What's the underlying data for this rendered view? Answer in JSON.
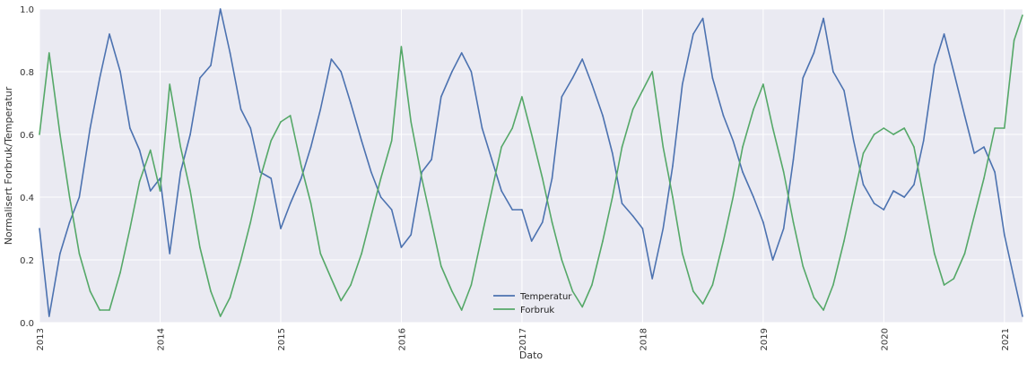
{
  "chart_data": {
    "type": "line",
    "title": "",
    "xlabel": "Dato",
    "ylabel": "Normalisert Forbruk/Temperatur",
    "xlim": [
      2013.0,
      2021.15
    ],
    "ylim": [
      0.0,
      1.0
    ],
    "x_ticks": [
      2013,
      2014,
      2015,
      2016,
      2017,
      2018,
      2019,
      2020,
      2021
    ],
    "y_ticks": [
      0.0,
      0.2,
      0.4,
      0.6,
      0.8,
      1.0
    ],
    "x_tick_labels": [
      "2013",
      "2014",
      "2015",
      "2016",
      "2017",
      "2018",
      "2019",
      "2020",
      "2021"
    ],
    "y_tick_labels": [
      "0.0",
      "0.2",
      "0.4",
      "0.6",
      "0.8",
      "1.0"
    ],
    "grid": true,
    "legend_position": "lower-center",
    "background_color": "#eaeaf2",
    "x": [
      2013.0,
      2013.08,
      2013.17,
      2013.25,
      2013.33,
      2013.42,
      2013.5,
      2013.58,
      2013.67,
      2013.75,
      2013.83,
      2013.92,
      2014.0,
      2014.08,
      2014.17,
      2014.25,
      2014.33,
      2014.42,
      2014.5,
      2014.58,
      2014.67,
      2014.75,
      2014.83,
      2014.92,
      2015.0,
      2015.08,
      2015.17,
      2015.25,
      2015.33,
      2015.42,
      2015.5,
      2015.58,
      2015.67,
      2015.75,
      2015.83,
      2015.92,
      2016.0,
      2016.08,
      2016.17,
      2016.25,
      2016.33,
      2016.42,
      2016.5,
      2016.58,
      2016.67,
      2016.75,
      2016.83,
      2016.92,
      2017.0,
      2017.08,
      2017.17,
      2017.25,
      2017.33,
      2017.42,
      2017.5,
      2017.58,
      2017.67,
      2017.75,
      2017.83,
      2017.92,
      2018.0,
      2018.08,
      2018.17,
      2018.25,
      2018.33,
      2018.42,
      2018.5,
      2018.58,
      2018.67,
      2018.75,
      2018.83,
      2018.92,
      2019.0,
      2019.08,
      2019.17,
      2019.25,
      2019.33,
      2019.42,
      2019.5,
      2019.58,
      2019.67,
      2019.75,
      2019.83,
      2019.92,
      2020.0,
      2020.08,
      2020.17,
      2020.25,
      2020.33,
      2020.42,
      2020.5,
      2020.58,
      2020.67,
      2020.75,
      2020.83,
      2020.92,
      2021.0,
      2021.08,
      2021.15
    ],
    "series": [
      {
        "name": "Temperatur",
        "color": "#4c72b0",
        "values": [
          0.3,
          0.02,
          0.22,
          0.32,
          0.4,
          0.62,
          0.78,
          0.92,
          0.8,
          0.62,
          0.55,
          0.42,
          0.46,
          0.22,
          0.48,
          0.6,
          0.78,
          0.82,
          1.0,
          0.86,
          0.68,
          0.62,
          0.48,
          0.46,
          0.3,
          0.38,
          0.46,
          0.56,
          0.68,
          0.84,
          0.8,
          0.7,
          0.58,
          0.48,
          0.4,
          0.36,
          0.24,
          0.28,
          0.48,
          0.52,
          0.72,
          0.8,
          0.86,
          0.8,
          0.62,
          0.52,
          0.42,
          0.36,
          0.36,
          0.26,
          0.32,
          0.46,
          0.72,
          0.78,
          0.84,
          0.76,
          0.66,
          0.54,
          0.38,
          0.34,
          0.3,
          0.14,
          0.3,
          0.5,
          0.76,
          0.92,
          0.97,
          0.78,
          0.66,
          0.58,
          0.48,
          0.4,
          0.32,
          0.2,
          0.3,
          0.52,
          0.78,
          0.86,
          0.97,
          0.8,
          0.74,
          0.58,
          0.44,
          0.38,
          0.36,
          0.42,
          0.4,
          0.44,
          0.58,
          0.82,
          0.92,
          0.8,
          0.66,
          0.54,
          0.56,
          0.48,
          0.28,
          0.14,
          0.02
        ]
      },
      {
        "name": "Forbruk",
        "color": "#55a868",
        "values": [
          0.6,
          0.86,
          0.6,
          0.4,
          0.22,
          0.1,
          0.04,
          0.04,
          0.16,
          0.3,
          0.45,
          0.55,
          0.42,
          0.76,
          0.56,
          0.42,
          0.24,
          0.1,
          0.02,
          0.08,
          0.2,
          0.32,
          0.46,
          0.58,
          0.64,
          0.66,
          0.5,
          0.38,
          0.22,
          0.14,
          0.07,
          0.12,
          0.22,
          0.34,
          0.46,
          0.58,
          0.88,
          0.64,
          0.46,
          0.32,
          0.18,
          0.1,
          0.04,
          0.12,
          0.28,
          0.42,
          0.56,
          0.62,
          0.72,
          0.6,
          0.46,
          0.32,
          0.2,
          0.1,
          0.05,
          0.12,
          0.26,
          0.4,
          0.56,
          0.68,
          0.74,
          0.8,
          0.56,
          0.4,
          0.22,
          0.1,
          0.06,
          0.12,
          0.26,
          0.4,
          0.56,
          0.68,
          0.76,
          0.62,
          0.48,
          0.32,
          0.18,
          0.08,
          0.04,
          0.12,
          0.26,
          0.4,
          0.54,
          0.6,
          0.62,
          0.6,
          0.62,
          0.56,
          0.4,
          0.22,
          0.12,
          0.14,
          0.22,
          0.34,
          0.46,
          0.62,
          0.62,
          0.9,
          0.98
        ]
      }
    ]
  }
}
